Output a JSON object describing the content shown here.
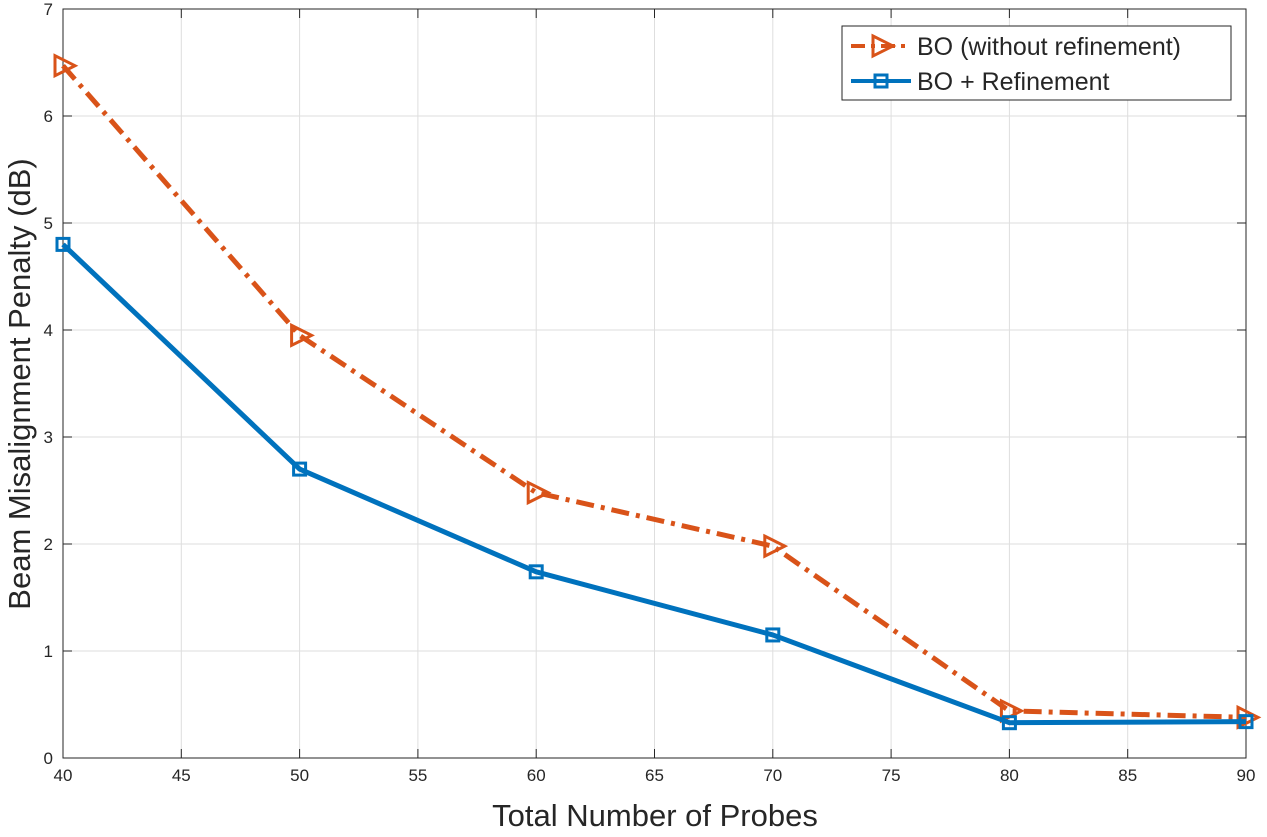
{
  "chart_data": {
    "type": "line",
    "title": "",
    "xlabel": "Total Number of Probes",
    "ylabel": "Beam Misalignment Penalty (dB)",
    "xlim": [
      40,
      90
    ],
    "ylim": [
      0,
      7
    ],
    "xticks": [
      40,
      45,
      50,
      55,
      60,
      65,
      70,
      75,
      80,
      85,
      90
    ],
    "yticks": [
      0,
      1,
      2,
      3,
      4,
      5,
      6,
      7
    ],
    "grid": true,
    "legend_location": "top-right",
    "x": [
      40,
      50,
      60,
      70,
      80,
      90
    ],
    "series": [
      {
        "name": "BO (without refinement)",
        "values": [
          6.47,
          3.95,
          2.48,
          1.98,
          0.44,
          0.38
        ],
        "color": "#D95319",
        "line_style": "dash-dot",
        "marker": "triangle-right"
      },
      {
        "name": "BO + Refinement",
        "values": [
          4.8,
          2.7,
          1.74,
          1.15,
          0.33,
          0.34
        ],
        "color": "#0072BD",
        "line_style": "solid",
        "marker": "square"
      }
    ]
  }
}
